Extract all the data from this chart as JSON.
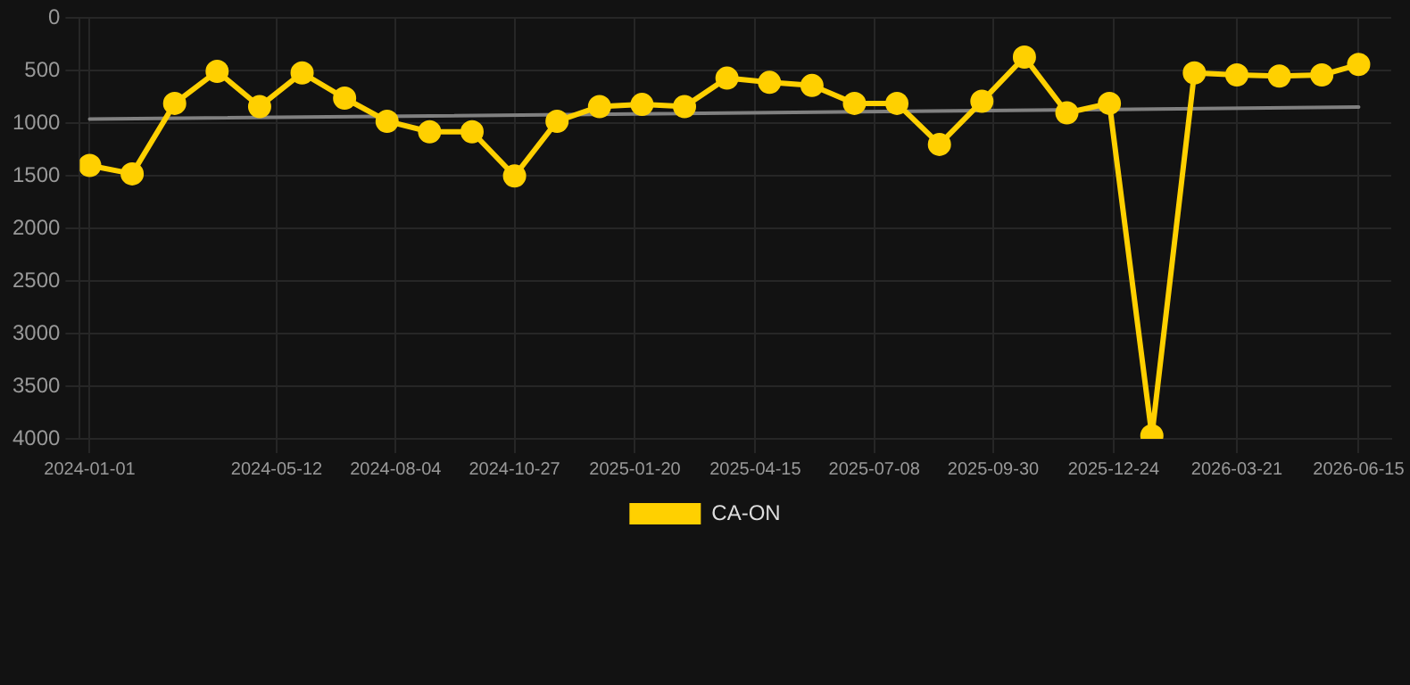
{
  "chart_data": {
    "type": "line",
    "x": [
      "2024-01-01",
      "2024-01-31",
      "2024-03-01",
      "2024-03-31",
      "2024-04-30",
      "2024-05-30",
      "2024-06-29",
      "2024-07-29",
      "2024-08-28",
      "2024-09-27",
      "2024-10-27",
      "2024-11-26",
      "2024-12-26",
      "2025-01-25",
      "2025-02-24",
      "2025-03-26",
      "2025-04-25",
      "2025-05-25",
      "2025-06-24",
      "2025-07-24",
      "2025-08-23",
      "2025-09-22",
      "2025-10-22",
      "2025-11-21",
      "2025-12-21",
      "2026-01-20",
      "2026-02-19",
      "2026-03-21",
      "2026-04-20",
      "2026-05-20",
      "2026-06-15"
    ],
    "series": [
      {
        "name": "CA-ON",
        "color": "#ffd000",
        "marker": "circle",
        "values": [
          1400,
          1480,
          810,
          505,
          840,
          520,
          760,
          980,
          1080,
          1080,
          1500,
          980,
          840,
          820,
          840,
          570,
          610,
          640,
          810,
          810,
          1200,
          790,
          370,
          900,
          810,
          3970,
          520,
          540,
          550,
          540,
          440
        ]
      },
      {
        "type": "line",
        "color": "#808080",
        "marker": "none",
        "x": [
          "2024-01-01",
          "2026-06-15"
        ],
        "values": [
          960,
          845
        ]
      }
    ],
    "ylim": [
      4000,
      0
    ],
    "yticks": [
      0,
      500,
      1000,
      1500,
      2000,
      2500,
      3000,
      3500,
      4000
    ],
    "xlim": [
      "2023-12-25",
      "2026-07-08"
    ],
    "xticks": [
      "2024-01-01",
      "2024-05-12",
      "2024-08-04",
      "2024-10-27",
      "2025-01-20",
      "2025-04-15",
      "2025-07-08",
      "2025-09-30",
      "2025-12-24",
      "2026-03-21",
      "2026-06-15"
    ],
    "grid": true,
    "legend": "bottom",
    "line_style": "solid"
  }
}
